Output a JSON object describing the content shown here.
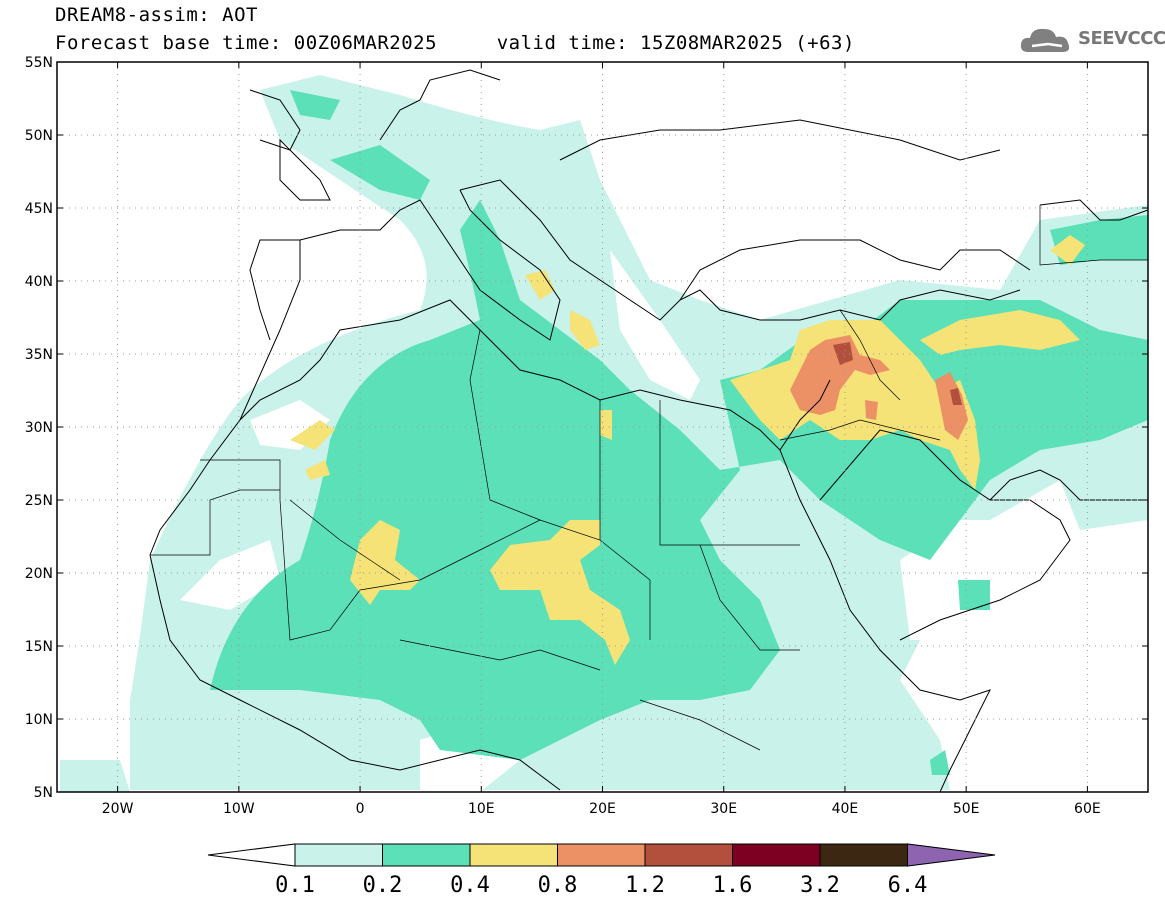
{
  "header": {
    "title": "DREAM8-assim: AOT",
    "subtitle": "Forecast base time: 00Z06MAR2025     valid time: 15Z08MAR2025 (+63)"
  },
  "logo": {
    "text": "SEEVCCC",
    "icon": "cloud-icon"
  },
  "map": {
    "variable": "AOT",
    "projection": "cylindrical",
    "lon_range": [
      -25,
      65
    ],
    "lat_range": [
      5,
      55
    ],
    "lat_ticks": [
      {
        "value": 55,
        "label": "55N"
      },
      {
        "value": 50,
        "label": "50N"
      },
      {
        "value": 45,
        "label": "45N"
      },
      {
        "value": 40,
        "label": "40N"
      },
      {
        "value": 35,
        "label": "35N"
      },
      {
        "value": 30,
        "label": "30N"
      },
      {
        "value": 25,
        "label": "25N"
      },
      {
        "value": 20,
        "label": "20N"
      },
      {
        "value": 15,
        "label": "15N"
      },
      {
        "value": 10,
        "label": "10N"
      },
      {
        "value": 5,
        "label": "5N"
      }
    ],
    "lon_ticks": [
      {
        "value": -20,
        "label": "20W"
      },
      {
        "value": -10,
        "label": "10W"
      },
      {
        "value": 0,
        "label": "0"
      },
      {
        "value": 10,
        "label": "10E"
      },
      {
        "value": 20,
        "label": "20E"
      },
      {
        "value": 30,
        "label": "30E"
      },
      {
        "value": 40,
        "label": "40E"
      },
      {
        "value": 50,
        "label": "50E"
      },
      {
        "value": 60,
        "label": "60E"
      }
    ],
    "grid": true
  },
  "colorbar": {
    "levels": [
      "0.1",
      "0.2",
      "0.4",
      "0.8",
      "1.2",
      "1.6",
      "3.2",
      "6.4"
    ],
    "colors": [
      "#ffffff",
      "#c8f2ea",
      "#5be0b8",
      "#f5e378",
      "#eb9165",
      "#b2503d",
      "#7d0023",
      "#3c2812",
      "#8e64b0"
    ]
  }
}
